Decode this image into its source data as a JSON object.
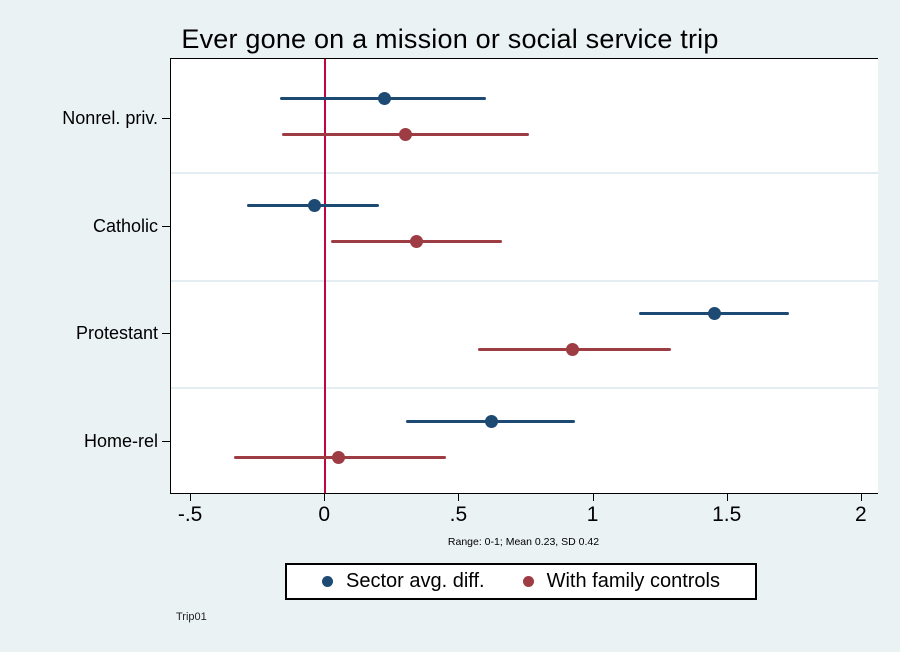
{
  "title": "Ever gone on a mission or social service trip",
  "watermark": "Trip01",
  "colors": {
    "background": "#eaf2f3",
    "plot_background": "#ffffff",
    "gridline": "#e4edf1",
    "reference_line": "#c10540",
    "axis": "#000000",
    "series_navy": "#1d4a73",
    "series_maroon": "#9e3c44"
  },
  "chart_data": {
    "type": "scatter",
    "title": "Ever gone on a mission or social service trip",
    "categories": [
      "Nonrel. priv.",
      "Catholic",
      "Protestant",
      "Home-rel"
    ],
    "x_tick_labels": [
      "-.5",
      "0",
      ".5",
      "1",
      "1.5",
      "2"
    ],
    "x_tick_values": [
      -0.5,
      0,
      0.5,
      1,
      1.5,
      2
    ],
    "xlim": [
      -0.575,
      2.06
    ],
    "reference_line_x": 0,
    "grid": "horizontal-separators-only",
    "legend_position": "bottom",
    "note": "Range: 0-1; Mean 0.23, SD 0.42",
    "series": [
      {
        "name": "Sector avg. diff.",
        "color": "#1d4a73",
        "estimates": [
          0.22,
          -0.04,
          1.45,
          0.62
        ],
        "ci_low": [
          -0.17,
          -0.29,
          1.17,
          0.3
        ],
        "ci_high": [
          0.6,
          0.2,
          1.73,
          0.93
        ]
      },
      {
        "name": "With family controls",
        "color": "#9e3c44",
        "estimates": [
          0.3,
          0.34,
          0.92,
          0.05
        ],
        "ci_low": [
          -0.16,
          0.02,
          0.57,
          -0.34
        ],
        "ci_high": [
          0.76,
          0.66,
          1.29,
          0.45
        ]
      }
    ]
  }
}
